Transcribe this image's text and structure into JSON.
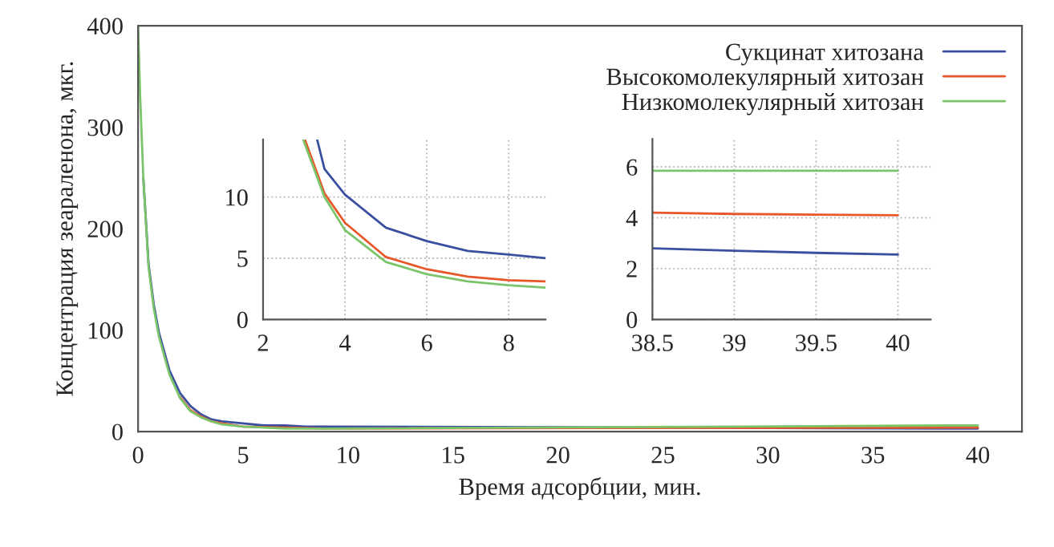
{
  "chart_data": [
    {
      "type": "line",
      "xlabel": "Время адсорбции, мин.",
      "ylabel": "Концентрация зеараленона, мкг.",
      "xlim": [
        0,
        42.1
      ],
      "ylim": [
        0,
        400
      ],
      "xticks": [
        0,
        5,
        10,
        15,
        20,
        25,
        30,
        35,
        40
      ],
      "yticks": [
        0,
        100,
        200,
        300,
        400
      ],
      "grid": false,
      "legend": "top right",
      "line_style": "solid",
      "x": [
        0,
        0.1,
        0.25,
        0.5,
        0.75,
        1,
        1.5,
        2,
        2.5,
        3,
        3.5,
        4,
        5,
        6,
        7,
        8,
        8.9,
        38.5,
        40
      ],
      "series": [
        {
          "name": "Сукцинат хитозана",
          "color": "#3b4fa0",
          "values": [
            null,
            null,
            250,
            165,
            125,
            97,
            60,
            38,
            25,
            17,
            12,
            10,
            8,
            6,
            6,
            5,
            5,
            3,
            3
          ]
        },
        {
          "name": "Высокомолекулярный хитозан",
          "color": "#e8572a",
          "values": [
            null,
            null,
            null,
            null,
            null,
            null,
            null,
            34,
            21,
            15,
            10,
            8,
            5,
            null,
            null,
            null,
            3,
            4,
            4
          ]
        },
        {
          "name": "Низкомолекулярный хитозан",
          "color": "#7cc46a",
          "values": [
            400,
            330,
            250,
            162,
            121,
            93,
            56,
            33,
            20,
            14,
            10,
            7,
            5,
            4,
            3,
            3,
            3,
            6,
            6
          ]
        }
      ]
    },
    {
      "type": "line",
      "xlim": [
        2,
        8.9
      ],
      "ylim": [
        0,
        14.7
      ],
      "xticks": [
        2,
        4,
        6,
        8
      ],
      "yticks": [
        0,
        5,
        10
      ],
      "grid": true,
      "line_style": "solid",
      "series": [
        {
          "color": "#3b4fa0",
          "x": [
            3.32,
            3.5,
            4,
            5,
            6,
            7,
            8,
            8.9
          ],
          "values": [
            14.7,
            12.3,
            10.2,
            7.5,
            6.4,
            5.6,
            5.3,
            5.0
          ]
        },
        {
          "color": "#e8572a",
          "x": [
            3.02,
            3.5,
            4,
            5,
            6,
            7,
            8,
            8.9
          ],
          "values": [
            14.7,
            10.3,
            7.9,
            5.1,
            4.1,
            3.5,
            3.2,
            3.1
          ]
        },
        {
          "color": "#7cc46a",
          "x": [
            2.98,
            3.5,
            4,
            5,
            6,
            7,
            8,
            8.9
          ],
          "values": [
            14.7,
            10,
            7.3,
            4.7,
            3.7,
            3.1,
            2.8,
            2.6
          ]
        }
      ]
    },
    {
      "type": "line",
      "xlim": [
        38.5,
        40.2
      ],
      "ylim": [
        0,
        7.1
      ],
      "xticks": [
        38.5,
        39,
        39.5,
        40
      ],
      "yticks": [
        0,
        2,
        4,
        6
      ],
      "grid": true,
      "line_style": "solid",
      "series": [
        {
          "color": "#3b4fa0",
          "x": [
            38.5,
            39,
            39.5,
            40
          ],
          "values": [
            2.8,
            2.7,
            2.62,
            2.55
          ]
        },
        {
          "color": "#e8572a",
          "x": [
            38.5,
            39,
            39.5,
            40
          ],
          "values": [
            4.2,
            4.15,
            4.12,
            4.1
          ]
        },
        {
          "color": "#7cc46a",
          "x": [
            38.5,
            39,
            39.5,
            40
          ],
          "values": [
            5.85,
            5.85,
            5.85,
            5.85
          ]
        }
      ]
    }
  ]
}
